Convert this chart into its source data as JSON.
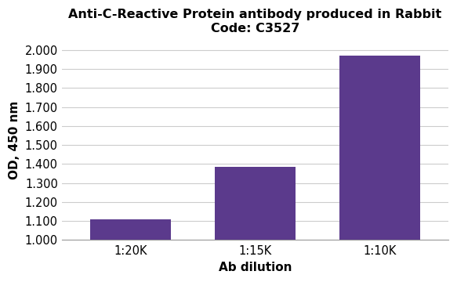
{
  "title_line1": "Anti-C-Reactive Protein antibody produced in Rabbit",
  "title_line2": "Code: C3527",
  "categories": [
    "1:20K",
    "1:15K",
    "1:10K"
  ],
  "values": [
    1.108,
    1.383,
    1.97
  ],
  "bar_color": "#5b3a8c",
  "xlabel": "Ab dilution",
  "ylabel": "OD, 450 nm",
  "ylim_min": 1.0,
  "ylim_max": 2.05,
  "yticks": [
    1.0,
    1.1,
    1.2,
    1.3,
    1.4,
    1.5,
    1.6,
    1.7,
    1.8,
    1.9,
    2.0
  ],
  "background_color": "#ffffff",
  "grid_color": "#cccccc",
  "title_fontsize": 11.5,
  "label_fontsize": 11,
  "tick_fontsize": 10.5
}
